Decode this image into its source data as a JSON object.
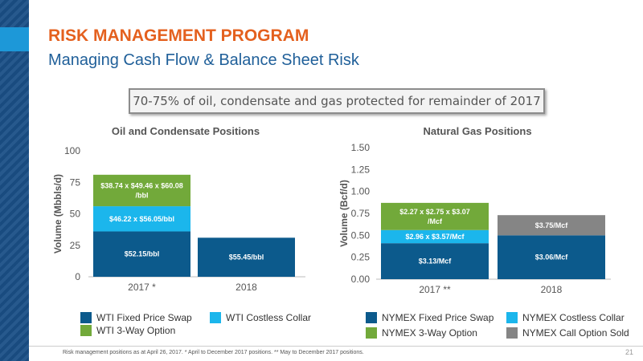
{
  "title": "RISK MANAGEMENT PROGRAM",
  "subtitle": "Managing Cash Flow & Balance Sheet Risk",
  "callout": "70-75% of oil, condensate and gas protected for remainder of 2017",
  "footnote": "Risk management positions as at April 26, 2017. * April to December 2017 positions. ** May to December 2017 positions.",
  "page_number": "21",
  "colors": {
    "navy": "#0c5a8c",
    "cyan": "#1bb6ec",
    "green": "#72a93a",
    "gray": "#858585"
  },
  "chart_data": [
    {
      "type": "bar",
      "stacked": true,
      "title": "Oil and Condensate Positions",
      "ylabel": "Volume (Mbbls/d)",
      "ylim": [
        0,
        100
      ],
      "yticks": [
        0,
        25,
        50,
        75,
        100
      ],
      "categories": [
        "2017 *",
        "2018"
      ],
      "series": [
        {
          "name": "WTI Fixed Price Swap",
          "color": "#0c5a8c",
          "values": [
            36,
            31
          ],
          "labels": [
            "$52.15/bbl",
            "$55.45/bbl"
          ]
        },
        {
          "name": "WTI Costless Collar",
          "color": "#1bb6ec",
          "values": [
            20,
            0
          ],
          "labels": [
            "$46.22 x $56.05/bbl",
            ""
          ]
        },
        {
          "name": "WTI 3-Way Option",
          "color": "#72a93a",
          "values": [
            25,
            0
          ],
          "labels": [
            "$38.74 x $49.46 x $60.08 /bbl",
            ""
          ]
        }
      ]
    },
    {
      "type": "bar",
      "stacked": true,
      "title": "Natural Gas Positions",
      "ylabel": "Volume (Bcf/d)",
      "ylim": [
        0,
        1.5
      ],
      "yticks": [
        "0.00",
        "0.25",
        "0.50",
        "0.75",
        "1.00",
        "1.25",
        "1.50"
      ],
      "categories": [
        "2017 **",
        "2018"
      ],
      "series": [
        {
          "name": "NYMEX Fixed Price Swap",
          "color": "#0c5a8c",
          "values": [
            0.41,
            0.5
          ],
          "labels": [
            "$3.13/Mcf",
            "$3.06/Mcf"
          ]
        },
        {
          "name": "NYMEX Costless Collar",
          "color": "#1bb6ec",
          "values": [
            0.15,
            0
          ],
          "labels": [
            "$2.96 x $3.57/Mcf",
            ""
          ]
        },
        {
          "name": "NYMEX 3-Way Option",
          "color": "#72a93a",
          "values": [
            0.31,
            0
          ],
          "labels": [
            "$2.27 x $2.75 x $3.07 /Mcf",
            ""
          ]
        },
        {
          "name": "NYMEX Call Option Sold",
          "color": "#858585",
          "values": [
            0,
            0.23
          ],
          "labels": [
            "",
            "$3.75/Mcf"
          ]
        }
      ]
    }
  ]
}
